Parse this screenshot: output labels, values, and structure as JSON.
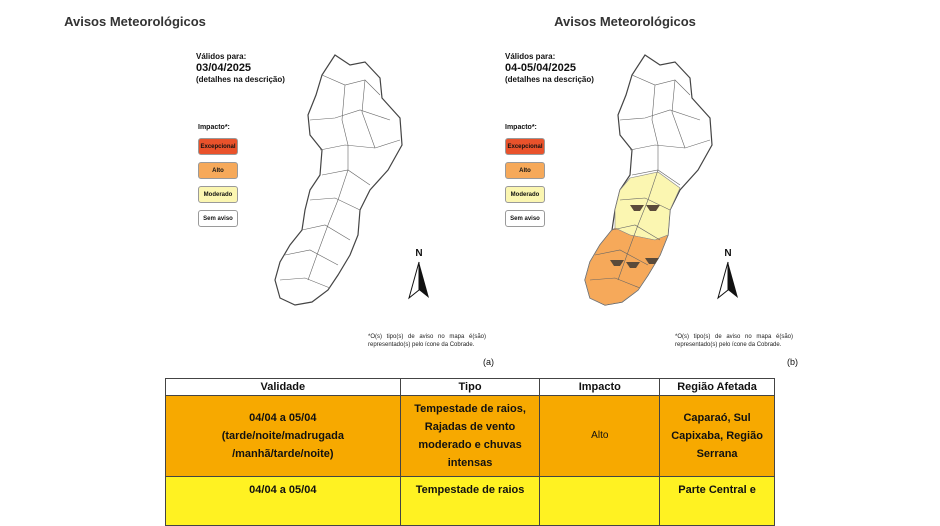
{
  "maps": [
    {
      "title": "Avisos Meteorológicos",
      "valid_label": "Válidos para:",
      "valid_date": "03/04/2025",
      "detail_note": "(detalhes na descrição)",
      "impact_label": "Impacto*:",
      "figure_label": "(a)"
    },
    {
      "title": "Avisos Meteorológicos",
      "valid_label": "Válidos para:",
      "valid_date": "04-05/04/2025",
      "detail_note": "(detalhes na descrição)",
      "impact_label": "Impacto*:",
      "figure_label": "(b)"
    }
  ],
  "legend": [
    {
      "label": "Excepcional",
      "color": "#e9522b"
    },
    {
      "label": "Alto",
      "color": "#f6a95a"
    },
    {
      "label": "Moderado",
      "color": "#fbf6b1"
    },
    {
      "label": "Sem aviso",
      "color": "#ffffff"
    }
  ],
  "footnote": "*O(s) tipo(s) de aviso no mapa é(são) representado(s) pelo ícone da Cobrade.",
  "north_letter": "N",
  "table": {
    "headers": [
      "Validade",
      "Tipo",
      "Impacto",
      "Região Afetada"
    ],
    "rows": [
      {
        "validity": "04/04 a 05/04\n(tarde/noite/madrugada\n/manhã/tarde/noite)",
        "type": "Tempestade de raios, Rajadas de vento moderado e chuvas intensas",
        "impact": "Alto",
        "region": "Caparaó, Sul Capixaba, Região Serrana",
        "color": "#f7a900"
      },
      {
        "validity": "04/04 a 05/04",
        "type": "Tempestade de raios",
        "impact": "",
        "region": "Parte Central e",
        "color": "#fff222"
      }
    ]
  }
}
